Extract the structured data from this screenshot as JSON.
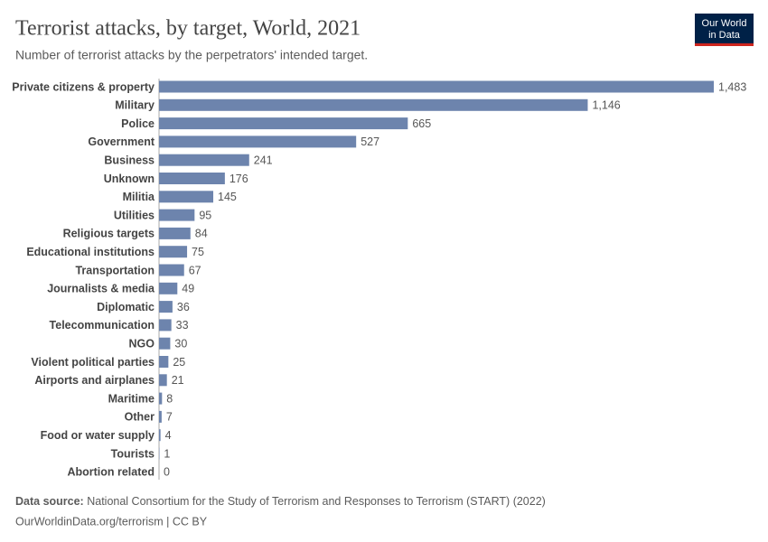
{
  "chart_data": {
    "type": "bar",
    "orientation": "horizontal",
    "title": "Terrorist attacks, by target, World, 2021",
    "subtitle": "Number of terrorist attacks by the perpetrators' intended target.",
    "categories": [
      "Private citizens & property",
      "Military",
      "Police",
      "Government",
      "Business",
      "Unknown",
      "Militia",
      "Utilities",
      "Religious targets",
      "Educational institutions",
      "Transportation",
      "Journalists & media",
      "Diplomatic",
      "Telecommunication",
      "NGO",
      "Violent political parties",
      "Airports and airplanes",
      "Maritime",
      "Other",
      "Food or water supply",
      "Tourists",
      "Abortion related"
    ],
    "values": [
      1483,
      1146,
      665,
      527,
      241,
      176,
      145,
      95,
      84,
      75,
      67,
      49,
      36,
      33,
      30,
      25,
      21,
      8,
      7,
      4,
      1,
      0
    ],
    "value_labels": [
      "1,483",
      "1,146",
      "665",
      "527",
      "241",
      "176",
      "145",
      "95",
      "84",
      "75",
      "67",
      "49",
      "36",
      "33",
      "30",
      "25",
      "21",
      "8",
      "7",
      "4",
      "1",
      "0"
    ],
    "color": "#6d84ad",
    "source_label": "Data source:",
    "source": "National Consortium for the Study of Terrorism and Responses to Terrorism (START) (2022)",
    "footer": "OurWorldinData.org/terrorism | CC BY",
    "logo": [
      "Our World",
      "in Data"
    ]
  }
}
